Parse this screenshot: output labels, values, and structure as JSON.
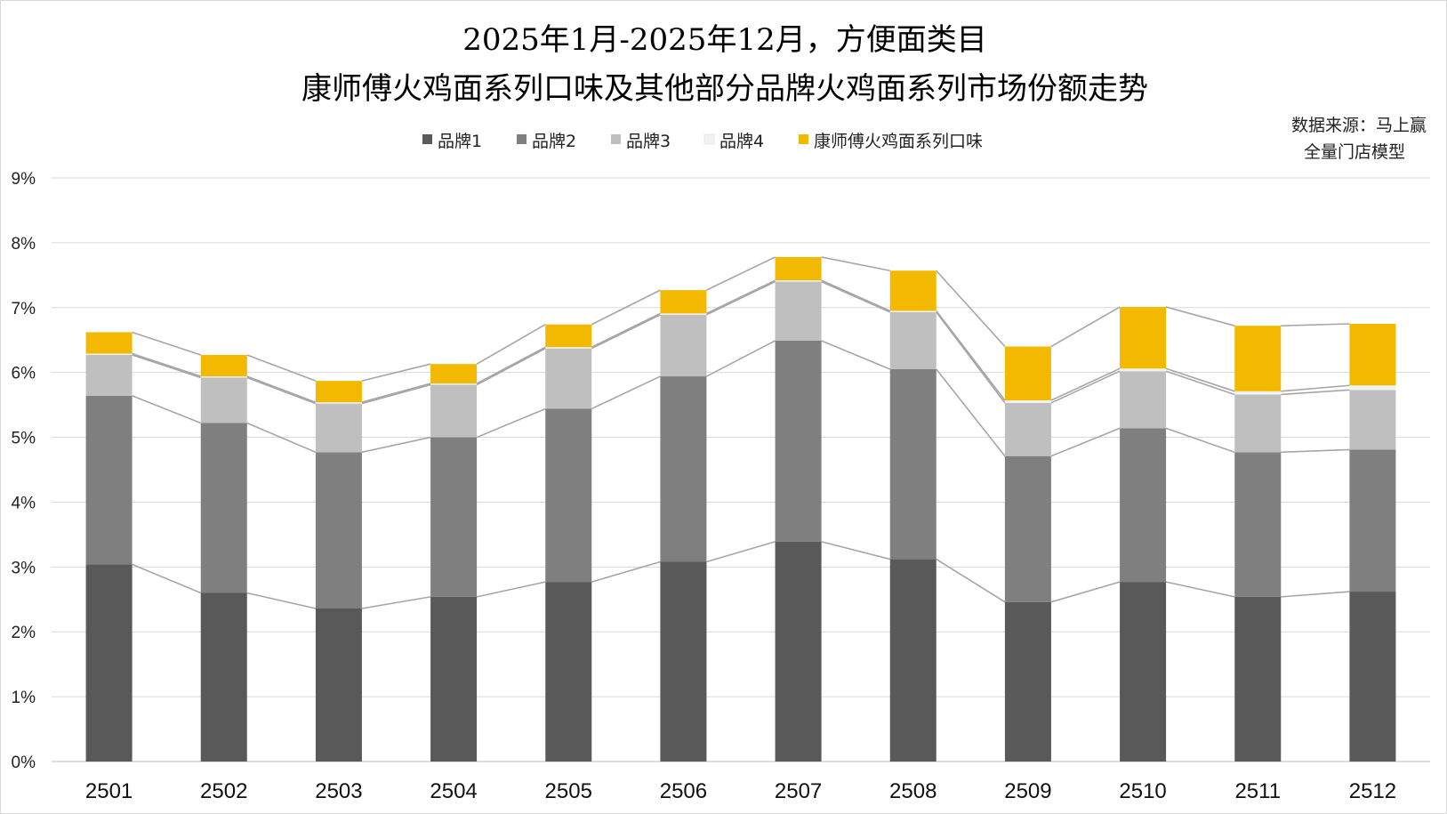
{
  "chart_data": {
    "type": "bar",
    "stacked": true,
    "title_lines": [
      "2025年1月-2025年12月，方便面类目",
      "康师傅火鸡面系列口味及其他部分品牌火鸡面系列市场份额走势"
    ],
    "source_lines": [
      "数据来源：马上赢",
      "全量门店模型"
    ],
    "categories": [
      "2501",
      "2502",
      "2503",
      "2504",
      "2505",
      "2506",
      "2507",
      "2508",
      "2509",
      "2510",
      "2511",
      "2512"
    ],
    "ylim": [
      0,
      9
    ],
    "yticks": [
      0,
      1,
      2,
      3,
      4,
      5,
      6,
      7,
      8,
      9
    ],
    "ytick_labels": [
      "0%",
      "1%",
      "2%",
      "3%",
      "4%",
      "5%",
      "6%",
      "7%",
      "8%",
      "9%"
    ],
    "grid": true,
    "legend_position": "top",
    "series": [
      {
        "name": "品牌1",
        "color": "#595959",
        "values": [
          3.04,
          2.6,
          2.36,
          2.54,
          2.77,
          3.08,
          3.39,
          3.12,
          2.46,
          2.77,
          2.54,
          2.62
        ]
      },
      {
        "name": "品牌2",
        "color": "#7f7f7f",
        "values": [
          2.6,
          2.62,
          2.41,
          2.46,
          2.67,
          2.86,
          3.1,
          2.93,
          2.25,
          2.37,
          2.23,
          2.19
        ]
      },
      {
        "name": "品牌3",
        "color": "#bfbfbf",
        "values": [
          0.63,
          0.7,
          0.75,
          0.81,
          0.93,
          0.95,
          0.91,
          0.88,
          0.82,
          0.88,
          0.89,
          0.92
        ]
      },
      {
        "name": "品牌4",
        "color": "#f2f2f2",
        "values": [
          0.02,
          0.02,
          0.02,
          0.02,
          0.02,
          0.02,
          0.02,
          0.02,
          0.04,
          0.04,
          0.05,
          0.07
        ]
      },
      {
        "name": "康师傅火鸡面系列口味",
        "color": "#f2b900",
        "values": [
          0.33,
          0.33,
          0.33,
          0.3,
          0.35,
          0.36,
          0.36,
          0.62,
          0.83,
          0.95,
          1.01,
          0.95
        ]
      }
    ]
  }
}
